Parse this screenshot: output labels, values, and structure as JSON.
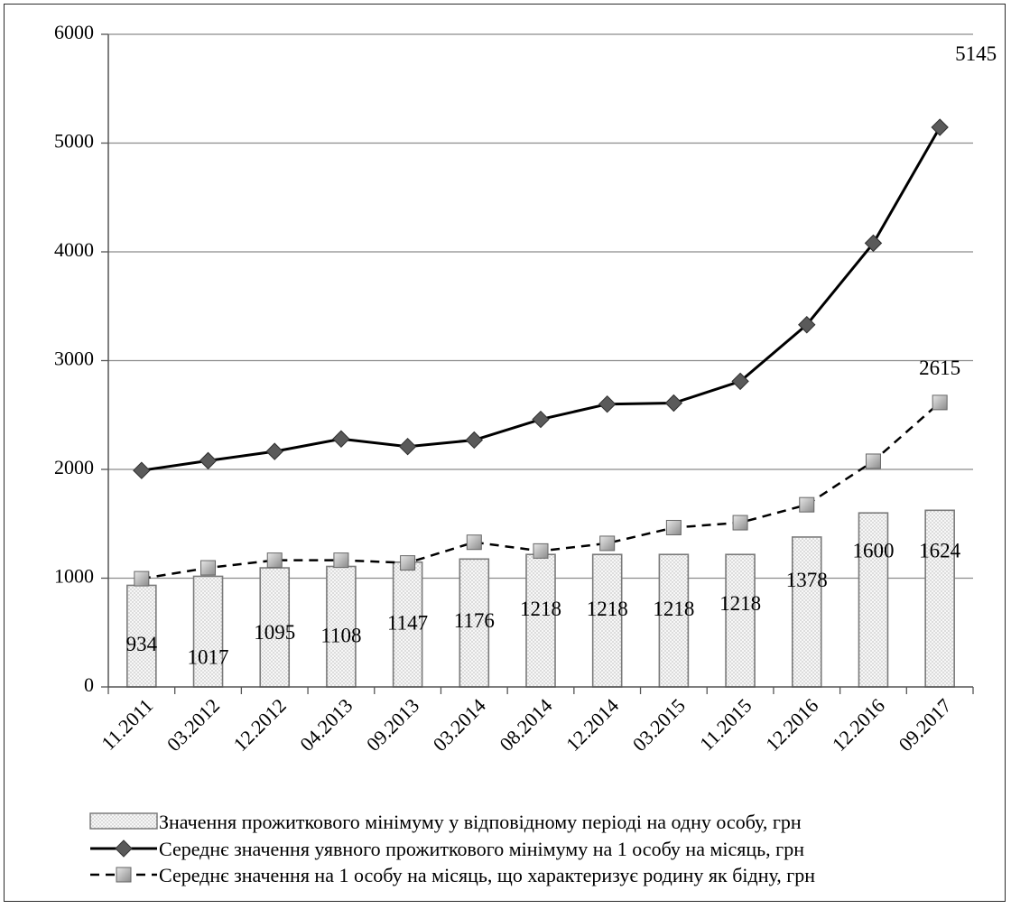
{
  "chart_data": {
    "type": "bar",
    "categories": [
      "11.2011",
      "03.2012",
      "12.2012",
      "04.2013",
      "09.2013",
      "03.2014",
      "08.2014",
      "12.2014",
      "03.2015",
      "11.2015",
      "12.2016",
      "12.2016",
      "09.2017"
    ],
    "ylim": [
      0,
      6000
    ],
    "yticks": [
      0,
      1000,
      2000,
      3000,
      4000,
      5000,
      6000
    ],
    "grid": true,
    "legend_position": "bottom",
    "series": [
      {
        "name": "Значення прожиткового мінімуму у відповідному періоді на одну особу, грн",
        "type": "bar",
        "values": [
          934,
          1017,
          1095,
          1108,
          1147,
          1176,
          1218,
          1218,
          1218,
          1218,
          1378,
          1600,
          1624
        ],
        "labels": [
          "934",
          "1017",
          "1095",
          "1108",
          "1147",
          "1176",
          "1218",
          "1218",
          "1218",
          "1218",
          "1378",
          "1600",
          "1624"
        ]
      },
      {
        "name": "Середнє значення уявного прожиткового мінімуму на 1 особу на місяць, грн",
        "type": "line",
        "style": "solid",
        "marker": "diamond",
        "values": [
          1990,
          2080,
          2165,
          2280,
          2210,
          2270,
          2460,
          2600,
          2610,
          2810,
          3330,
          4080,
          5145
        ],
        "last_label": "5145"
      },
      {
        "name": "Середнє значення на 1 особу на місяць, що характеризує родину як бідну,  грн",
        "type": "line",
        "style": "dashed",
        "marker": "square",
        "values": [
          995,
          1095,
          1165,
          1165,
          1140,
          1330,
          1250,
          1320,
          1465,
          1510,
          1675,
          2075,
          2615
        ],
        "last_label": "2615"
      }
    ]
  },
  "colors": {
    "bar_fill": "#f3f3f3",
    "bar_stroke": "#7a7a7a",
    "line": "#000000",
    "diamond": "#5a5a5a",
    "square": "#a8a8a8",
    "grid": "#8c8c8c"
  }
}
